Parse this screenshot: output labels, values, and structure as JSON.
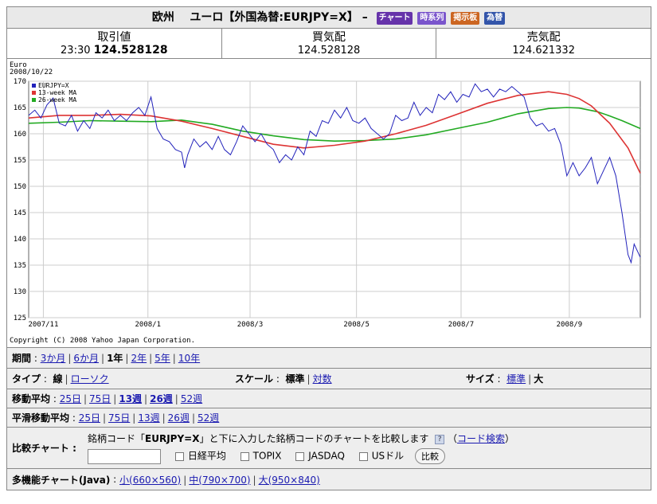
{
  "title": {
    "prefix": "欧州",
    "main": "ユーロ【外国為替:EURJPY=X】",
    "dash": "–",
    "badges": [
      {
        "label": "チャート",
        "color": "#6633aa"
      },
      {
        "label": "時系列",
        "color": "#7a55cc"
      },
      {
        "label": "掲示板",
        "color": "#cc6622"
      },
      {
        "label": "為替",
        "color": "#3355aa"
      }
    ]
  },
  "quotes": [
    {
      "label": "取引値",
      "time": "23:30",
      "value": "124.528128"
    },
    {
      "label": "買気配",
      "time": "",
      "value": "124.528128"
    },
    {
      "label": "売気配",
      "time": "",
      "value": "124.621332"
    }
  ],
  "chart_data": {
    "type": "line",
    "unit_label": "Euro",
    "date_label": "2008/10/22",
    "copyright": "Copyright (C) 2008 Yahoo Japan Corporation.",
    "ylim": [
      125,
      170
    ],
    "yticks": [
      125,
      130,
      135,
      140,
      145,
      150,
      155,
      160,
      165,
      170
    ],
    "x_labels": [
      {
        "label": "2007/11",
        "t": 0.024
      },
      {
        "label": "2008/1",
        "t": 0.195
      },
      {
        "label": "2008/3",
        "t": 0.362
      },
      {
        "label": "2008/5",
        "t": 0.536
      },
      {
        "label": "2008/7",
        "t": 0.707
      },
      {
        "label": "2008/9",
        "t": 0.884
      }
    ],
    "legend_position": "top-left",
    "grid": true,
    "series": [
      {
        "name": "EURJPY=X",
        "color": "#2222bb",
        "points": [
          [
            0,
            163.5
          ],
          [
            0.01,
            164.5
          ],
          [
            0.02,
            163
          ],
          [
            0.03,
            165.5
          ],
          [
            0.04,
            166.8
          ],
          [
            0.05,
            162
          ],
          [
            0.06,
            161.5
          ],
          [
            0.07,
            163.5
          ],
          [
            0.08,
            160.5
          ],
          [
            0.09,
            162.5
          ],
          [
            0.1,
            161
          ],
          [
            0.11,
            164
          ],
          [
            0.12,
            163
          ],
          [
            0.13,
            164.5
          ],
          [
            0.14,
            162.5
          ],
          [
            0.15,
            163.5
          ],
          [
            0.16,
            162.5
          ],
          [
            0.17,
            164
          ],
          [
            0.18,
            165
          ],
          [
            0.19,
            163.5
          ],
          [
            0.2,
            167
          ],
          [
            0.21,
            161
          ],
          [
            0.22,
            159
          ],
          [
            0.23,
            158.5
          ],
          [
            0.24,
            157
          ],
          [
            0.25,
            156.5
          ],
          [
            0.255,
            153.5
          ],
          [
            0.26,
            156
          ],
          [
            0.27,
            159
          ],
          [
            0.28,
            157.5
          ],
          [
            0.29,
            158.5
          ],
          [
            0.3,
            157
          ],
          [
            0.31,
            159.5
          ],
          [
            0.32,
            157
          ],
          [
            0.33,
            156
          ],
          [
            0.34,
            158.5
          ],
          [
            0.35,
            161.5
          ],
          [
            0.36,
            160
          ],
          [
            0.37,
            158.5
          ],
          [
            0.38,
            160
          ],
          [
            0.39,
            158
          ],
          [
            0.4,
            157
          ],
          [
            0.41,
            154.5
          ],
          [
            0.42,
            156
          ],
          [
            0.43,
            155
          ],
          [
            0.44,
            157.5
          ],
          [
            0.45,
            156
          ],
          [
            0.46,
            160.5
          ],
          [
            0.47,
            159.5
          ],
          [
            0.48,
            162.5
          ],
          [
            0.49,
            162
          ],
          [
            0.5,
            164.5
          ],
          [
            0.51,
            163
          ],
          [
            0.52,
            165
          ],
          [
            0.53,
            162.5
          ],
          [
            0.54,
            162
          ],
          [
            0.55,
            163
          ],
          [
            0.56,
            161
          ],
          [
            0.57,
            160
          ],
          [
            0.58,
            159
          ],
          [
            0.59,
            160
          ],
          [
            0.6,
            163.5
          ],
          [
            0.61,
            162.5
          ],
          [
            0.62,
            163
          ],
          [
            0.63,
            166
          ],
          [
            0.64,
            163.5
          ],
          [
            0.65,
            165
          ],
          [
            0.66,
            164
          ],
          [
            0.67,
            167.5
          ],
          [
            0.68,
            166.5
          ],
          [
            0.69,
            168
          ],
          [
            0.7,
            166
          ],
          [
            0.71,
            167.5
          ],
          [
            0.72,
            167
          ],
          [
            0.73,
            169.5
          ],
          [
            0.74,
            168
          ],
          [
            0.75,
            168.5
          ],
          [
            0.76,
            167
          ],
          [
            0.77,
            168.5
          ],
          [
            0.78,
            168
          ],
          [
            0.79,
            169
          ],
          [
            0.8,
            168
          ],
          [
            0.81,
            167
          ],
          [
            0.82,
            163
          ],
          [
            0.83,
            161.5
          ],
          [
            0.84,
            162
          ],
          [
            0.85,
            160.5
          ],
          [
            0.86,
            161
          ],
          [
            0.87,
            158
          ],
          [
            0.88,
            152
          ],
          [
            0.89,
            154.5
          ],
          [
            0.9,
            152
          ],
          [
            0.91,
            153.5
          ],
          [
            0.92,
            155.5
          ],
          [
            0.93,
            150.5
          ],
          [
            0.94,
            153
          ],
          [
            0.95,
            155.5
          ],
          [
            0.96,
            152
          ],
          [
            0.97,
            145
          ],
          [
            0.98,
            137
          ],
          [
            0.985,
            135.5
          ],
          [
            0.99,
            139
          ],
          [
            1.0,
            136.5
          ]
        ]
      },
      {
        "name": "13-week MA",
        "color": "#dd3333",
        "points": [
          [
            0,
            163
          ],
          [
            0.05,
            163.5
          ],
          [
            0.1,
            163.5
          ],
          [
            0.15,
            163.7
          ],
          [
            0.2,
            163.4
          ],
          [
            0.25,
            162.4
          ],
          [
            0.3,
            161
          ],
          [
            0.35,
            159.5
          ],
          [
            0.4,
            158
          ],
          [
            0.45,
            157.3
          ],
          [
            0.5,
            157.8
          ],
          [
            0.55,
            158.6
          ],
          [
            0.6,
            160
          ],
          [
            0.65,
            161.6
          ],
          [
            0.7,
            163.7
          ],
          [
            0.75,
            165.8
          ],
          [
            0.8,
            167.3
          ],
          [
            0.85,
            168
          ],
          [
            0.88,
            167.5
          ],
          [
            0.9,
            166.7
          ],
          [
            0.92,
            165.3
          ],
          [
            0.95,
            162
          ],
          [
            0.98,
            157.3
          ],
          [
            1.0,
            152.5
          ]
        ]
      },
      {
        "name": "26-week MA",
        "color": "#22aa22",
        "points": [
          [
            0,
            162
          ],
          [
            0.05,
            162.2
          ],
          [
            0.1,
            162.5
          ],
          [
            0.15,
            162.4
          ],
          [
            0.2,
            162.3
          ],
          [
            0.25,
            162.6
          ],
          [
            0.3,
            161.8
          ],
          [
            0.35,
            160.5
          ],
          [
            0.4,
            159.6
          ],
          [
            0.45,
            158.9
          ],
          [
            0.5,
            158.6
          ],
          [
            0.55,
            158.7
          ],
          [
            0.6,
            159
          ],
          [
            0.65,
            159.8
          ],
          [
            0.7,
            161
          ],
          [
            0.75,
            162.2
          ],
          [
            0.8,
            163.8
          ],
          [
            0.85,
            164.8
          ],
          [
            0.88,
            165
          ],
          [
            0.9,
            164.9
          ],
          [
            0.93,
            164.2
          ],
          [
            0.95,
            163.4
          ],
          [
            0.97,
            162.5
          ],
          [
            1.0,
            161
          ]
        ]
      }
    ]
  },
  "controls": {
    "period": {
      "label": "期間",
      "options": [
        "3か月",
        "6か月",
        "1年",
        "2年",
        "5年",
        "10年"
      ],
      "current": "1年"
    },
    "type": {
      "label": "タイプ",
      "options": [
        "線",
        "ローソク"
      ],
      "current": "線"
    },
    "scale": {
      "label": "スケール",
      "options": [
        "標準",
        "対数"
      ],
      "current": "標準"
    },
    "size": {
      "label": "サイズ",
      "options": [
        "標準",
        "大"
      ],
      "current": "大"
    },
    "ma": {
      "label": "移動平均",
      "options": [
        "25日",
        "75日",
        "13週",
        "26週",
        "52週"
      ],
      "bold": [
        "13週",
        "26週"
      ]
    },
    "smooth": {
      "label": "平滑移動平均",
      "options": [
        "25日",
        "75日",
        "13週",
        "26週",
        "52週"
      ]
    },
    "compare": {
      "label": "比較チャート",
      "sentence_pre": "銘柄コード「",
      "code": "EURJPY=X",
      "sentence_post": "」と下に入力した銘柄コードのチャートを比較します",
      "help": "?",
      "code_search": "コード検索",
      "checkboxes": [
        "日経平均",
        "TOPIX",
        "JASDAQ",
        "USドル"
      ],
      "button": "比較"
    },
    "java": {
      "label": "多機能チャート(Java)",
      "options": [
        "小(660×560)",
        "中(790×700)",
        "大(950×840)"
      ]
    }
  }
}
